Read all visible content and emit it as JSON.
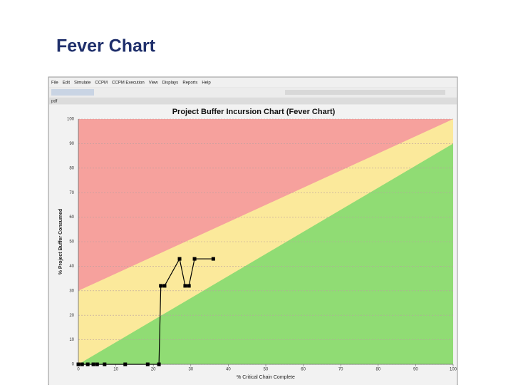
{
  "slide_title": "Fever Chart",
  "menu": [
    "File",
    "Edit",
    "Simulate",
    "CCPM",
    "CCPM Execution",
    "View",
    "Displays",
    "Reports",
    "Help"
  ],
  "tab": "pdf",
  "chart_data": {
    "type": "line",
    "title": "Project Buffer Incursion Chart (Fever Chart)",
    "x_label": "% Critical Chain Complete",
    "y_label": "% Project Buffer Consumed",
    "xlim": [
      0,
      100
    ],
    "ylim": [
      0,
      100
    ],
    "xticks": [
      0,
      10,
      20,
      30,
      40,
      50,
      60,
      70,
      80,
      90,
      100
    ],
    "yticks": [
      0,
      10,
      20,
      30,
      40,
      50,
      60,
      70,
      80,
      90,
      100
    ],
    "grid": true,
    "zones": [
      {
        "color": "#f6a19d"
      },
      {
        "color": "#fbe99b",
        "upper": [
          30,
          100
        ]
      },
      {
        "color": "#90dc74",
        "upper": [
          0,
          90
        ]
      }
    ],
    "series": [
      {
        "color": "#000000",
        "x": [
          0,
          1,
          2.5,
          4,
          5,
          7,
          12.5,
          18.5,
          21.5,
          22,
          23,
          27,
          28.5,
          29.5,
          31,
          36
        ],
        "values": [
          0,
          0,
          0,
          0,
          0,
          0,
          0,
          0,
          0,
          32,
          32,
          43,
          32,
          32,
          43,
          43
        ]
      }
    ]
  }
}
